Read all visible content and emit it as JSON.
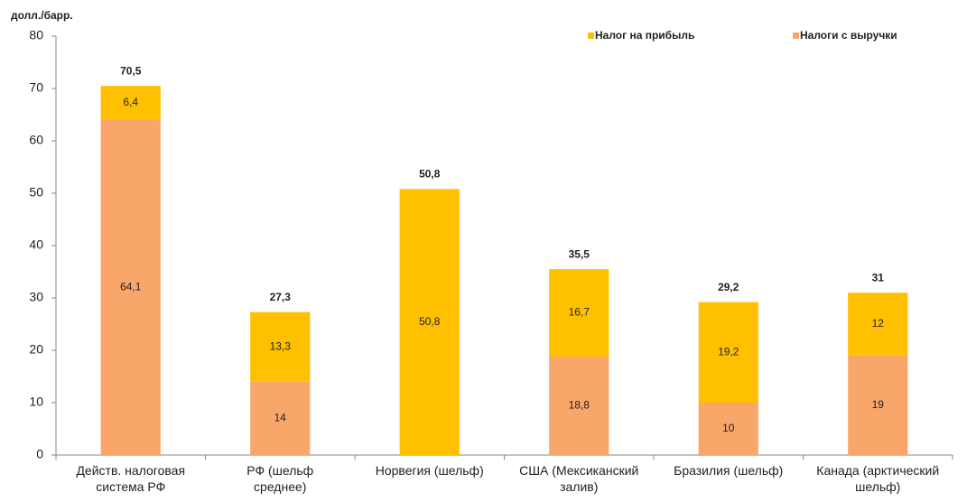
{
  "chart_data": {
    "type": "stacked_bar",
    "axis_label": "долл./барр.",
    "categories": [
      [
        "Действ. налоговая",
        "система РФ"
      ],
      [
        "РФ (шельф",
        "среднее)"
      ],
      [
        "Норвегия (шельф)"
      ],
      [
        "США (Мексиканский",
        "залив)"
      ],
      [
        "Бразилия (шельф)"
      ],
      [
        "Канада (арктический",
        "шельф)"
      ]
    ],
    "series": [
      {
        "name": "Налоги с выручки",
        "color": "#F9A66B",
        "values": [
          64.1,
          14,
          null,
          18.8,
          10,
          19
        ],
        "value_labels": [
          "64,1",
          "14",
          null,
          "18,8",
          "10",
          "19"
        ]
      },
      {
        "name": "Налог на прибыль",
        "color": "#FFC000",
        "values": [
          6.4,
          13.3,
          50.8,
          16.7,
          19.2,
          12
        ],
        "value_labels": [
          "6,4",
          "13,3",
          "50,8",
          "16,7",
          "19,2",
          "12"
        ]
      }
    ],
    "totals": [
      70.5,
      27.3,
      50.8,
      35.5,
      29.2,
      31
    ],
    "total_labels": [
      "70,5",
      "27,3",
      "50,8",
      "35,5",
      "29,2",
      "31"
    ],
    "legend_order": [
      1,
      0
    ],
    "legend": "top-right",
    "ylim": [
      0,
      80
    ],
    "yticks": [
      0,
      10,
      20,
      30,
      40,
      50,
      60,
      70,
      80
    ]
  }
}
